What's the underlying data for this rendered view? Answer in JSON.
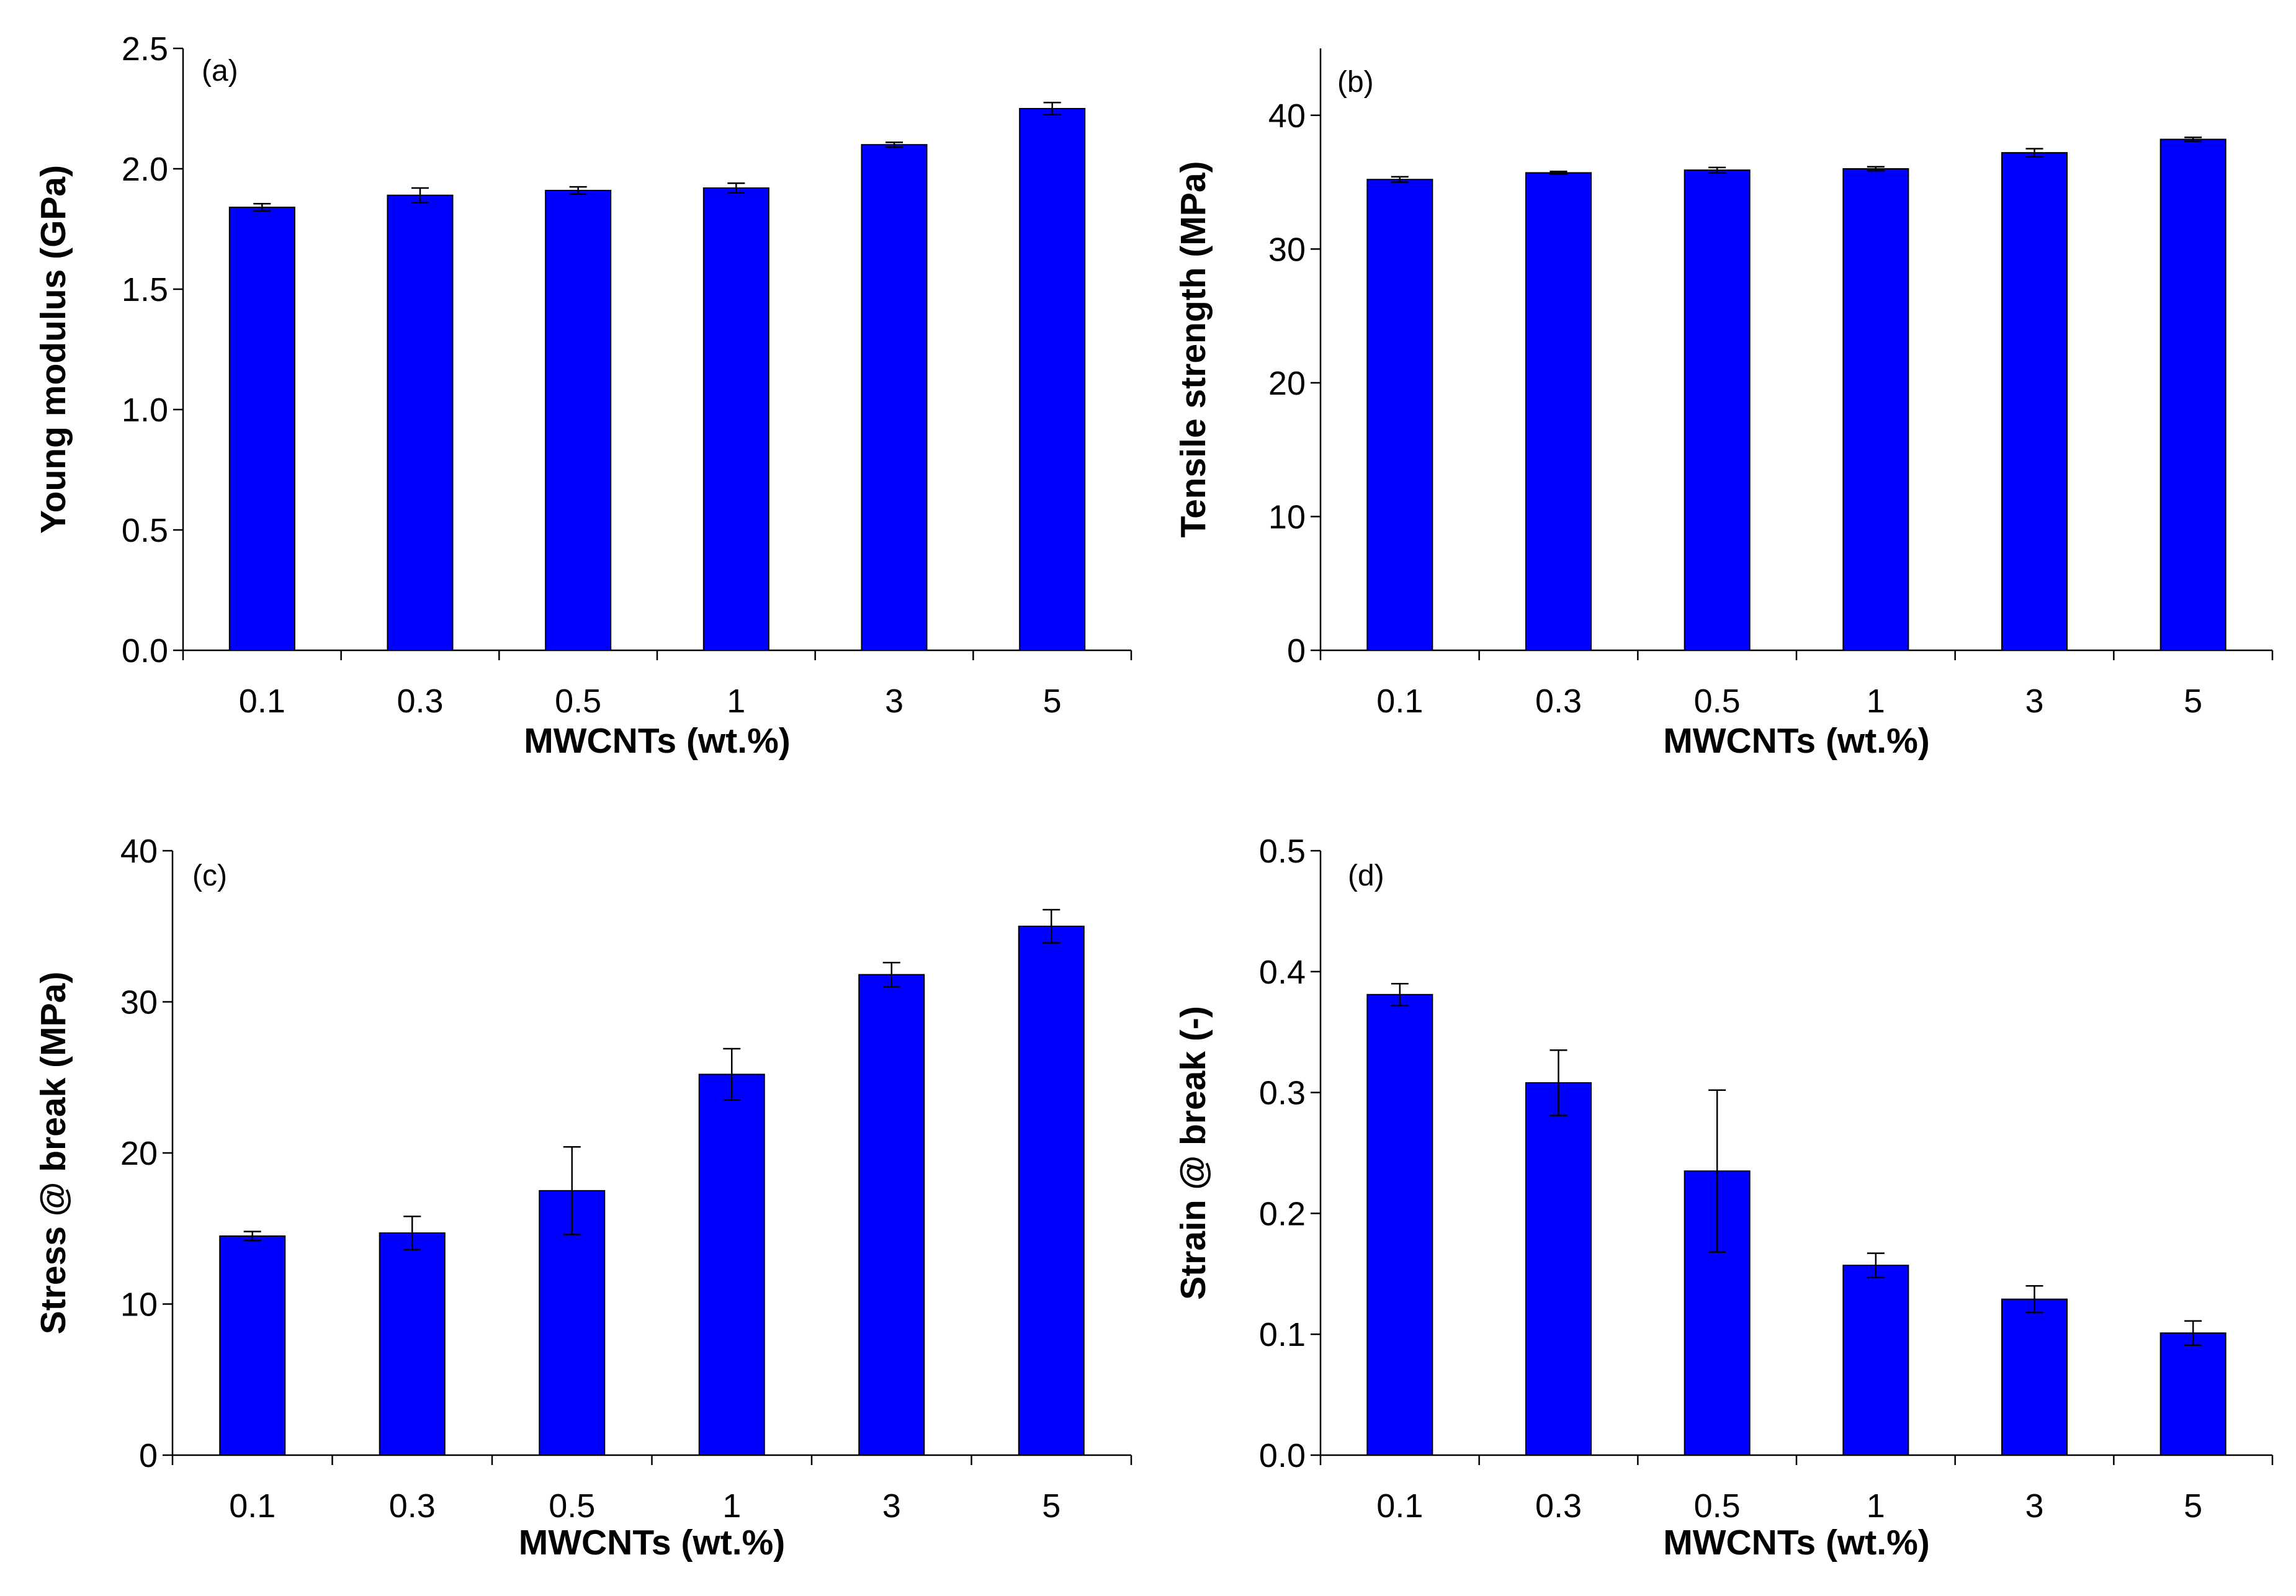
{
  "colors": {
    "bar": "#0000ff",
    "axis": "#000000"
  },
  "chart_data": [
    {
      "type": "bar",
      "panel": "(a)",
      "categories": [
        "0.1",
        "0.3",
        "0.5",
        "1",
        "3",
        "5"
      ],
      "values": [
        1.84,
        1.89,
        1.91,
        1.92,
        2.1,
        2.25
      ],
      "errors": [
        0.015,
        0.03,
        0.015,
        0.02,
        0.01,
        0.025
      ],
      "xlabel": "MWCNTs (wt.%)",
      "ylabel": "Young modulus (GPa)",
      "ylim": [
        0,
        2.5
      ],
      "yticks": [
        "0.0",
        "0.5",
        "1.0",
        "1.5",
        "2.0",
        "2.5"
      ],
      "ytick_values": [
        0,
        0.5,
        1.0,
        1.5,
        2.0,
        2.5
      ]
    },
    {
      "type": "bar",
      "panel": "(b)",
      "categories": [
        "0.1",
        "0.3",
        "0.5",
        "1",
        "3",
        "5"
      ],
      "values": [
        35.2,
        35.7,
        35.9,
        36.0,
        37.2,
        38.2
      ],
      "errors": [
        0.2,
        0.1,
        0.2,
        0.15,
        0.3,
        0.15
      ],
      "xlabel": "MWCNTs (wt.%)",
      "ylabel": "Tensile strength (MPa)",
      "ylim": [
        0,
        45
      ],
      "yticks": [
        "0",
        "10",
        "20",
        "30",
        "40"
      ],
      "ytick_values": [
        0,
        10,
        20,
        30,
        40
      ]
    },
    {
      "type": "bar",
      "panel": "(c)",
      "categories": [
        "0.1",
        "0.3",
        "0.5",
        "1",
        "3",
        "5"
      ],
      "values": [
        14.5,
        14.7,
        17.5,
        25.2,
        31.8,
        35.0
      ],
      "errors": [
        0.3,
        1.1,
        2.9,
        1.7,
        0.8,
        1.1
      ],
      "xlabel": "MWCNTs (wt.%)",
      "ylabel": "Stress @ break (MPa)",
      "ylim": [
        0,
        40
      ],
      "yticks": [
        "0",
        "10",
        "20",
        "30",
        "40"
      ],
      "ytick_values": [
        0,
        10,
        20,
        30,
        40
      ]
    },
    {
      "type": "bar",
      "panel": "(d)",
      "categories": [
        "0.1",
        "0.3",
        "0.5",
        "1",
        "3",
        "5"
      ],
      "values": [
        0.381,
        0.308,
        0.235,
        0.157,
        0.129,
        0.101
      ],
      "errors": [
        0.009,
        0.027,
        0.067,
        0.01,
        0.011,
        0.01
      ],
      "xlabel": "MWCNTs (wt.%)",
      "ylabel": "Strain @ break (-)",
      "ylim": [
        0,
        0.5
      ],
      "yticks": [
        "0.0",
        "0.1",
        "0.2",
        "0.3",
        "0.4",
        "0.5"
      ],
      "ytick_values": [
        0,
        0.1,
        0.2,
        0.3,
        0.4,
        0.5
      ]
    }
  ]
}
